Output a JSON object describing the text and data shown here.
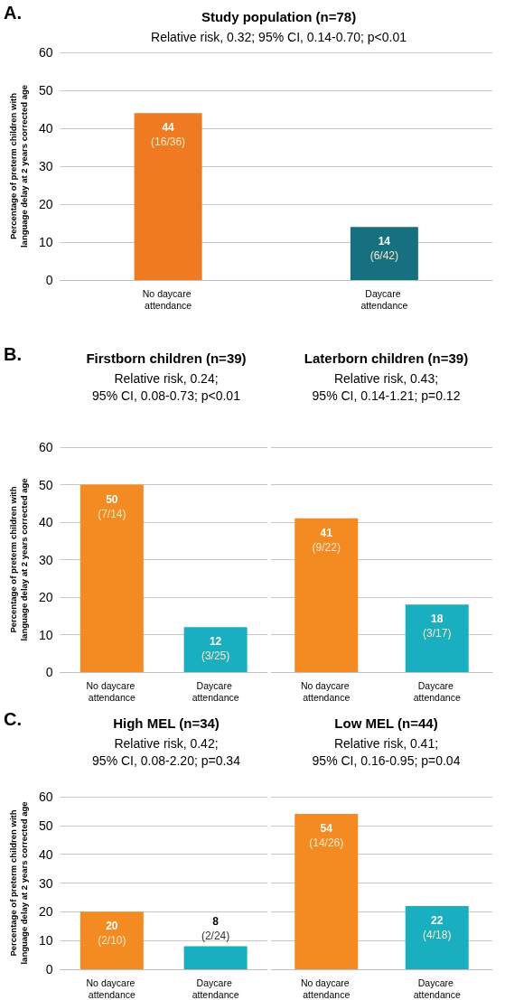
{
  "chart_data": [
    {
      "type": "bar",
      "title": "Study population (n=78)",
      "subtitle": "Relative risk, 0.32; 95% CI, 0.14-0.70; p<0.01",
      "annotations": [
        "A."
      ],
      "ylabel": "Percentage of preterm children with\nlanguage delay at 2 years corrected age",
      "categories": [
        "No daycare attendance",
        "Daycare attendance"
      ],
      "values": [
        44,
        14
      ],
      "colors": [
        "#f07a22",
        "#17707f"
      ],
      "value_labels": [
        "44\n(16/36)",
        "14\n(6/42)"
      ],
      "ylim": [
        0,
        60
      ],
      "yticks": [
        0,
        10,
        20,
        30,
        40,
        50,
        60
      ],
      "grid": "y"
    },
    {
      "type": "bar",
      "title": "Firstborn children (n=39)",
      "subtitle": "Relative risk, 0.24;\n95% CI, 0.08-0.73; p<0.01",
      "annotations": [
        "B."
      ],
      "ylabel": "Percentage of preterm children with\nlanguage delay at 2 years corrected age",
      "categories": [
        "No daycare attendance",
        "Daycare attendance"
      ],
      "values": [
        50,
        12
      ],
      "colors": [
        "#f48a22",
        "#1aafc0"
      ],
      "value_labels": [
        "50\n(7/14)",
        "12\n(3/25)"
      ],
      "ylim": [
        0,
        60
      ],
      "yticks": [
        0,
        10,
        20,
        30,
        40,
        50,
        60
      ],
      "grid": "y"
    },
    {
      "type": "bar",
      "title": "Laterborn children (n=39)",
      "subtitle": "Relative risk, 0.43;\n95% CI, 0.14-1.21; p=0.12",
      "categories": [
        "No daycare attendance",
        "Daycare attendance"
      ],
      "values": [
        41,
        18
      ],
      "colors": [
        "#f48a22",
        "#1aafc0"
      ],
      "value_labels": [
        "41\n(9/22)",
        "18\n(3/17)"
      ],
      "ylim": [
        0,
        60
      ],
      "yticks": [
        0,
        10,
        20,
        30,
        40,
        50,
        60
      ],
      "grid": "y",
      "tick_labels": "x"
    },
    {
      "type": "bar",
      "title": "High MEL (n=34)",
      "subtitle": "Relative risk, 0.42;\n95% CI, 0.08-2.20; p=0.34",
      "annotations": [
        "C."
      ],
      "ylabel": "Percentage of preterm children with\nlanguage delay at 2 years corrected age",
      "categories": [
        "No daycare attendance",
        "Daycare attendance"
      ],
      "values": [
        20,
        8
      ],
      "colors": [
        "#f48a22",
        "#1aafc0"
      ],
      "value_labels": [
        "20\n(2/10)",
        "8\n(2/24)"
      ],
      "ylim": [
        0,
        60
      ],
      "yticks": [
        0,
        10,
        20,
        30,
        40,
        50,
        60
      ],
      "grid": "y"
    },
    {
      "type": "bar",
      "title": "Low MEL (n=44)",
      "subtitle": "Relative risk, 0.41;\n95% CI, 0.16-0.95; p=0.04",
      "categories": [
        "No daycare attendance",
        "Daycare attendance"
      ],
      "values": [
        54,
        22
      ],
      "colors": [
        "#f48a22",
        "#1aafc0"
      ],
      "value_labels": [
        "54\n(14/26)",
        "22\n(4/18)"
      ],
      "ylim": [
        0,
        60
      ],
      "yticks": [
        0,
        10,
        20,
        30,
        40,
        50,
        60
      ],
      "grid": "y",
      "tick_labels": "x"
    }
  ]
}
